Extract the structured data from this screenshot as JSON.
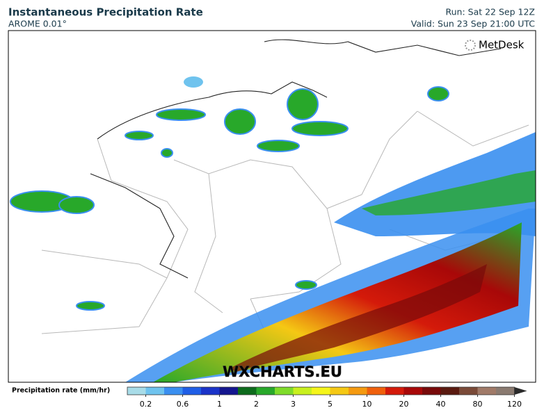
{
  "header": {
    "title": "Instantaneous Precipitation Rate",
    "model": "AROME 0.01°",
    "run": "Run: Sat 22 Sep 12Z",
    "valid": "Valid: Sun 23 Sep 21:00 UTC"
  },
  "logo": "MetDesk",
  "watermark": "WXCHARTS.EU",
  "colorbar": {
    "label": "Precipitation rate (mm/hr)",
    "ticks": [
      "0.2",
      "0.6",
      "1",
      "2",
      "3",
      "5",
      "10",
      "20",
      "40",
      "80",
      "120"
    ],
    "colors": [
      "#a8dce8",
      "#6fc3ee",
      "#3a8ff0",
      "#1f5ee6",
      "#1a33c8",
      "#14168f",
      "#0d6b1c",
      "#28a82a",
      "#7fdc2a",
      "#c8f01e",
      "#f5f51a",
      "#f5c814",
      "#f59a10",
      "#f0600c",
      "#d41a0a",
      "#a80808",
      "#780a0a",
      "#5a1a10",
      "#7a4a38",
      "#a07a68",
      "#8a7a70"
    ]
  }
}
